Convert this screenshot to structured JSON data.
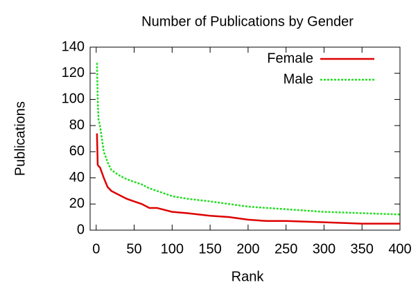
{
  "chart_data": {
    "type": "line",
    "title": "Number of Publications by Gender",
    "x_label": "Rank",
    "y_label": "Publications",
    "x": [
      1,
      2,
      3,
      5,
      10,
      15,
      20,
      30,
      40,
      50,
      60,
      70,
      80,
      100,
      120,
      150,
      175,
      200,
      225,
      250,
      300,
      350,
      400
    ],
    "series": [
      {
        "name": "Female",
        "color": "#dd0000",
        "dashed": false,
        "values": [
          74,
          50,
          49,
          48,
          40,
          33,
          30,
          27,
          24,
          22,
          20,
          17,
          17,
          14,
          13,
          11,
          10,
          8,
          7,
          7,
          6,
          5,
          5
        ]
      },
      {
        "name": "Male",
        "color": "#22dd22",
        "dashed": true,
        "values": [
          128,
          100,
          85,
          80,
          60,
          52,
          46,
          42,
          39,
          37,
          35,
          32,
          30,
          26,
          24,
          22,
          20,
          18,
          17,
          16,
          14,
          13,
          12
        ]
      }
    ],
    "xlim": [
      -8,
      400
    ],
    "ylim": [
      0,
      140
    ],
    "xticks": [
      0,
      50,
      100,
      150,
      200,
      250,
      300,
      350,
      400
    ],
    "yticks": [
      0,
      20,
      40,
      60,
      80,
      100,
      120,
      140
    ],
    "legend": "upper right",
    "grid": false
  }
}
